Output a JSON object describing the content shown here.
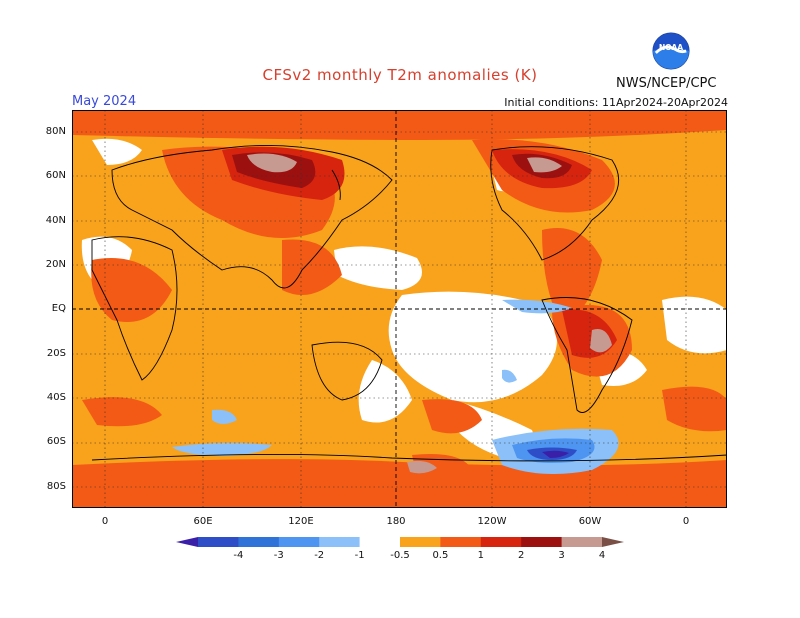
{
  "header": {
    "title": "CFSv2 monthly T2m anomalies (K)",
    "month": "May 2024",
    "initial_conditions": "Initial conditions: 11Apr2024-20Apr2024",
    "agency": "NWS/NCEP/CPC",
    "logo_text": "NOAA"
  },
  "axes": {
    "lat_labels": [
      "80N",
      "60N",
      "40N",
      "20N",
      "EQ",
      "20S",
      "40S",
      "60S",
      "80S"
    ],
    "lon_labels": [
      "0",
      "60E",
      "120E",
      "180",
      "120W",
      "60W",
      "0"
    ]
  },
  "colorbar": {
    "ticks": [
      "-4",
      "-3",
      "-2",
      "-1",
      "-0.5",
      "0.5",
      "1",
      "2",
      "3",
      "4"
    ],
    "colors": [
      "#3a1fa8",
      "#2e4ec8",
      "#2f72d8",
      "#4d95f0",
      "#8cc0f8",
      "#ffffff",
      "#f9a21c",
      "#f25a16",
      "#d6240f",
      "#9c1010",
      "#c69a90",
      "#7a5046"
    ]
  }
}
